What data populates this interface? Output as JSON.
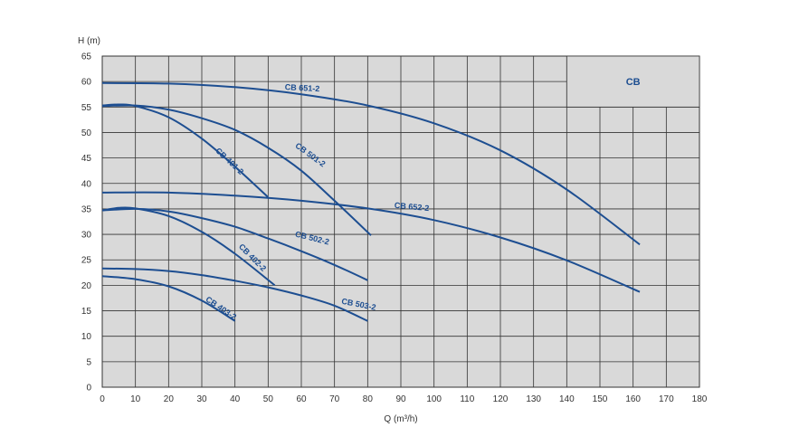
{
  "chart_data": {
    "type": "line",
    "title": "",
    "box_label": "CB",
    "xlabel": "Q (m³/h)",
    "ylabel": "H (m)",
    "xlim": [
      0,
      180
    ],
    "ylim": [
      0,
      65
    ],
    "xticks": [
      0,
      10,
      20,
      30,
      40,
      50,
      60,
      70,
      80,
      90,
      100,
      110,
      120,
      130,
      140,
      150,
      160,
      170,
      180
    ],
    "yticks": [
      0,
      5,
      10,
      15,
      20,
      25,
      30,
      35,
      40,
      45,
      50,
      55,
      60,
      65
    ],
    "grid": true,
    "background": "#d9d9d9",
    "curve_color": "#1d4e91",
    "series": [
      {
        "name": "CB 651-2",
        "x": [
          0,
          20,
          40,
          60,
          80,
          100,
          120,
          140,
          162
        ],
        "y": [
          59.7,
          59.6,
          58.9,
          57.5,
          55.3,
          51.8,
          46.5,
          38.8,
          28
        ]
      },
      {
        "name": "CB 652-2",
        "x": [
          0,
          20,
          40,
          60,
          80,
          100,
          120,
          140,
          162
        ],
        "y": [
          38.2,
          38.2,
          37.6,
          36.6,
          35.1,
          32.8,
          29.4,
          24.9,
          18.7
        ]
      },
      {
        "name": "CB 501-2",
        "x": [
          0,
          10,
          20,
          30,
          40,
          50,
          60,
          70,
          81
        ],
        "y": [
          55.2,
          55.3,
          54.5,
          52.8,
          50.5,
          47,
          42.5,
          36.6,
          29.8
        ]
      },
      {
        "name": "CB 502-2",
        "x": [
          0,
          10,
          20,
          30,
          40,
          50,
          60,
          70,
          80
        ],
        "y": [
          34.7,
          35,
          34.5,
          33.2,
          31.5,
          29.2,
          26.7,
          24,
          21
        ]
      },
      {
        "name": "CB 503-2",
        "x": [
          0,
          10,
          20,
          30,
          40,
          50,
          60,
          70,
          80
        ],
        "y": [
          23.3,
          23.2,
          22.8,
          22,
          20.9,
          19.6,
          18,
          16,
          13
        ]
      },
      {
        "name": "CB 401-2",
        "x": [
          0,
          5,
          10,
          20,
          30,
          40,
          50
        ],
        "y": [
          55.3,
          55.5,
          55.2,
          53,
          48.8,
          43.3,
          37.3
        ]
      },
      {
        "name": "CB 402-2",
        "x": [
          0,
          5,
          10,
          20,
          30,
          40,
          52
        ],
        "y": [
          34.7,
          35.2,
          35.1,
          33.6,
          30.5,
          26.2,
          20
        ]
      },
      {
        "name": "CB 403-2",
        "x": [
          0,
          10,
          20,
          30,
          40
        ],
        "y": [
          21.8,
          21.2,
          19.8,
          17,
          13
        ]
      }
    ],
    "labels": [
      {
        "text": "CB 651-2",
        "x": 55,
        "y": 58.4,
        "angle": 3
      },
      {
        "text": "CB 652-2",
        "x": 88,
        "y": 35.2,
        "angle": 5
      },
      {
        "text": "CB 501-2",
        "x": 58,
        "y": 47.2,
        "angle": 36
      },
      {
        "text": "CB 502-2",
        "x": 58,
        "y": 29.6,
        "angle": 14
      },
      {
        "text": "CB 503-2",
        "x": 72,
        "y": 16.4,
        "angle": 11
      },
      {
        "text": "CB 401-2",
        "x": 34,
        "y": 46.3,
        "angle": 43
      },
      {
        "text": "CB 402-2",
        "x": 41,
        "y": 27.5,
        "angle": 45
      },
      {
        "text": "CB 403-2",
        "x": 31,
        "y": 17,
        "angle": 34
      }
    ]
  }
}
